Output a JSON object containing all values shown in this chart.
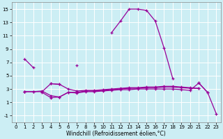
{
  "xlabel": "Windchill (Refroidissement éolien,°C)",
  "background_color": "#cceef4",
  "grid_color": "#ffffff",
  "line_color": "#990099",
  "x": [
    0,
    1,
    2,
    3,
    4,
    5,
    6,
    7,
    8,
    9,
    10,
    11,
    12,
    13,
    14,
    15,
    16,
    17,
    18,
    19,
    20,
    21,
    22,
    23
  ],
  "series": {
    "s1_solid": {
      "y": [
        null,
        7.5,
        6.2,
        null,
        3.8,
        3.7,
        null,
        6.6,
        null,
        null,
        null,
        11.5,
        13.2,
        15.0,
        15.0,
        14.8,
        13.2,
        9.2,
        4.6,
        null,
        null,
        3.9,
        2.5,
        null
      ],
      "style": "-"
    },
    "s2_flat_top": {
      "y": [
        null,
        2.6,
        2.6,
        2.6,
        3.8,
        3.7,
        3.0,
        2.7,
        2.8,
        2.8,
        2.9,
        3.0,
        3.1,
        3.2,
        3.2,
        3.3,
        3.3,
        3.4,
        3.4,
        3.3,
        3.2,
        3.1,
        null,
        null
      ],
      "style": "-"
    },
    "s3_mid": {
      "y": [
        null,
        2.6,
        2.6,
        2.7,
        2.0,
        1.8,
        2.5,
        2.5,
        2.7,
        2.7,
        2.8,
        2.9,
        3.0,
        3.1,
        3.1,
        3.2,
        3.2,
        3.3,
        3.3,
        3.2,
        3.1,
        3.1,
        null,
        null
      ],
      "style": "-"
    },
    "s4_decline": {
      "y": [
        null,
        2.6,
        null,
        2.5,
        1.7,
        1.8,
        2.5,
        2.4,
        2.6,
        2.6,
        2.7,
        2.8,
        2.9,
        2.9,
        3.0,
        3.0,
        3.0,
        3.0,
        3.0,
        2.9,
        2.8,
        3.9,
        2.5,
        -0.7
      ],
      "style": "-"
    }
  },
  "ylim": [
    -2,
    16
  ],
  "xlim": [
    -0.5,
    23.5
  ],
  "yticks": [
    -1,
    1,
    3,
    5,
    7,
    9,
    11,
    13,
    15
  ],
  "xticks": [
    0,
    1,
    2,
    3,
    4,
    5,
    6,
    7,
    8,
    9,
    10,
    11,
    12,
    13,
    14,
    15,
    16,
    17,
    18,
    19,
    20,
    21,
    22,
    23
  ],
  "tick_fontsize": 5.0,
  "xlabel_fontsize": 5.5
}
